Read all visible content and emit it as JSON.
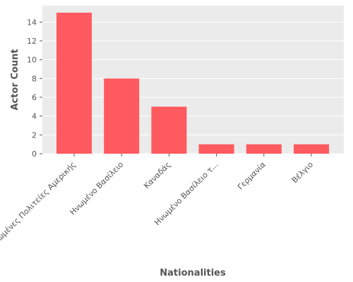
{
  "chart_data": {
    "type": "bar",
    "categories": [
      "Ηνωμένες Πολιτείες Αμερικής",
      "Ηνωμένο Βασίλειο",
      "Καναδάς",
      "Ηνωμένο Βασίλειο τ...",
      "Γερμανία",
      "Βέλγιο"
    ],
    "values": [
      15,
      8,
      5,
      1,
      1,
      1
    ],
    "title": "",
    "xlabel": "Nationalities",
    "ylabel": "Actor Count",
    "ylim": [
      0,
      15.75
    ],
    "yticks": [
      0,
      2,
      4,
      6,
      8,
      10,
      12,
      14
    ],
    "grid": true,
    "legend": "none",
    "colors": {
      "bar": "#ff5a5f",
      "panel": "#ebebeb",
      "grid": "#ffffff",
      "text": "#555555"
    }
  }
}
